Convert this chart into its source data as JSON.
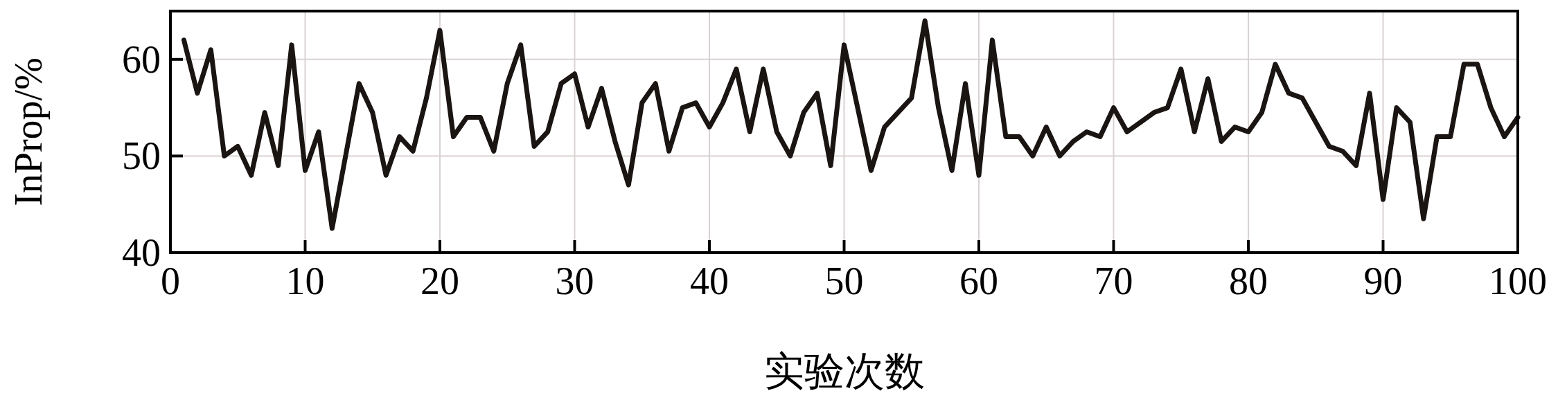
{
  "chart_data": {
    "type": "line",
    "xlabel": "实验次数",
    "ylabel": "InProp/%",
    "x": [
      1,
      2,
      3,
      4,
      5,
      6,
      7,
      8,
      9,
      10,
      11,
      12,
      13,
      14,
      15,
      16,
      17,
      18,
      19,
      20,
      21,
      22,
      23,
      24,
      25,
      26,
      27,
      28,
      29,
      30,
      31,
      32,
      33,
      34,
      35,
      36,
      37,
      38,
      39,
      40,
      41,
      42,
      43,
      44,
      45,
      46,
      47,
      48,
      49,
      50,
      51,
      52,
      53,
      54,
      55,
      56,
      57,
      58,
      59,
      60,
      61,
      62,
      63,
      64,
      65,
      66,
      67,
      68,
      69,
      70,
      71,
      72,
      73,
      74,
      75,
      76,
      77,
      78,
      79,
      80,
      81,
      82,
      83,
      84,
      85,
      86,
      87,
      88,
      89,
      90,
      91,
      92,
      93,
      94,
      95,
      96,
      97,
      98,
      99,
      100
    ],
    "series": [
      {
        "color": "#1a1412",
        "values": [
          62,
          56.5,
          61,
          50,
          51,
          48,
          54.5,
          49,
          61.5,
          48.5,
          52.5,
          42.5,
          50,
          57.5,
          54.5,
          48,
          52,
          50.5,
          56,
          63,
          52,
          54,
          54,
          50.5,
          57.5,
          61.5,
          51,
          52.5,
          57.5,
          58.5,
          53,
          57,
          51.5,
          47,
          55.5,
          57.5,
          50.5,
          55,
          55.5,
          53,
          55.5,
          59,
          52.5,
          59,
          52.5,
          50,
          54.5,
          56.5,
          49,
          61.5,
          55,
          48.5,
          53,
          54.5,
          56,
          64,
          55,
          48.5,
          57.5,
          48,
          62,
          52,
          52,
          50,
          53,
          50,
          51.5,
          52.5,
          52,
          55,
          52.5,
          53.5,
          54.5,
          55,
          59,
          52.5,
          58,
          51.5,
          53,
          52.5,
          54.5,
          59.5,
          56.5,
          56,
          53.5,
          51,
          50.5,
          49,
          56.5,
          45.5,
          55,
          53.5,
          43.5,
          52,
          52,
          59.5,
          59.5,
          55,
          52,
          54
        ]
      }
    ],
    "xlim": [
      0,
      100
    ],
    "ylim": [
      40,
      65
    ],
    "xticks": [
      0,
      10,
      20,
      30,
      40,
      50,
      60,
      70,
      80,
      90,
      100
    ],
    "yticks": [
      40,
      50,
      60
    ],
    "grid": true,
    "line_style": "solid",
    "marker": "none"
  }
}
